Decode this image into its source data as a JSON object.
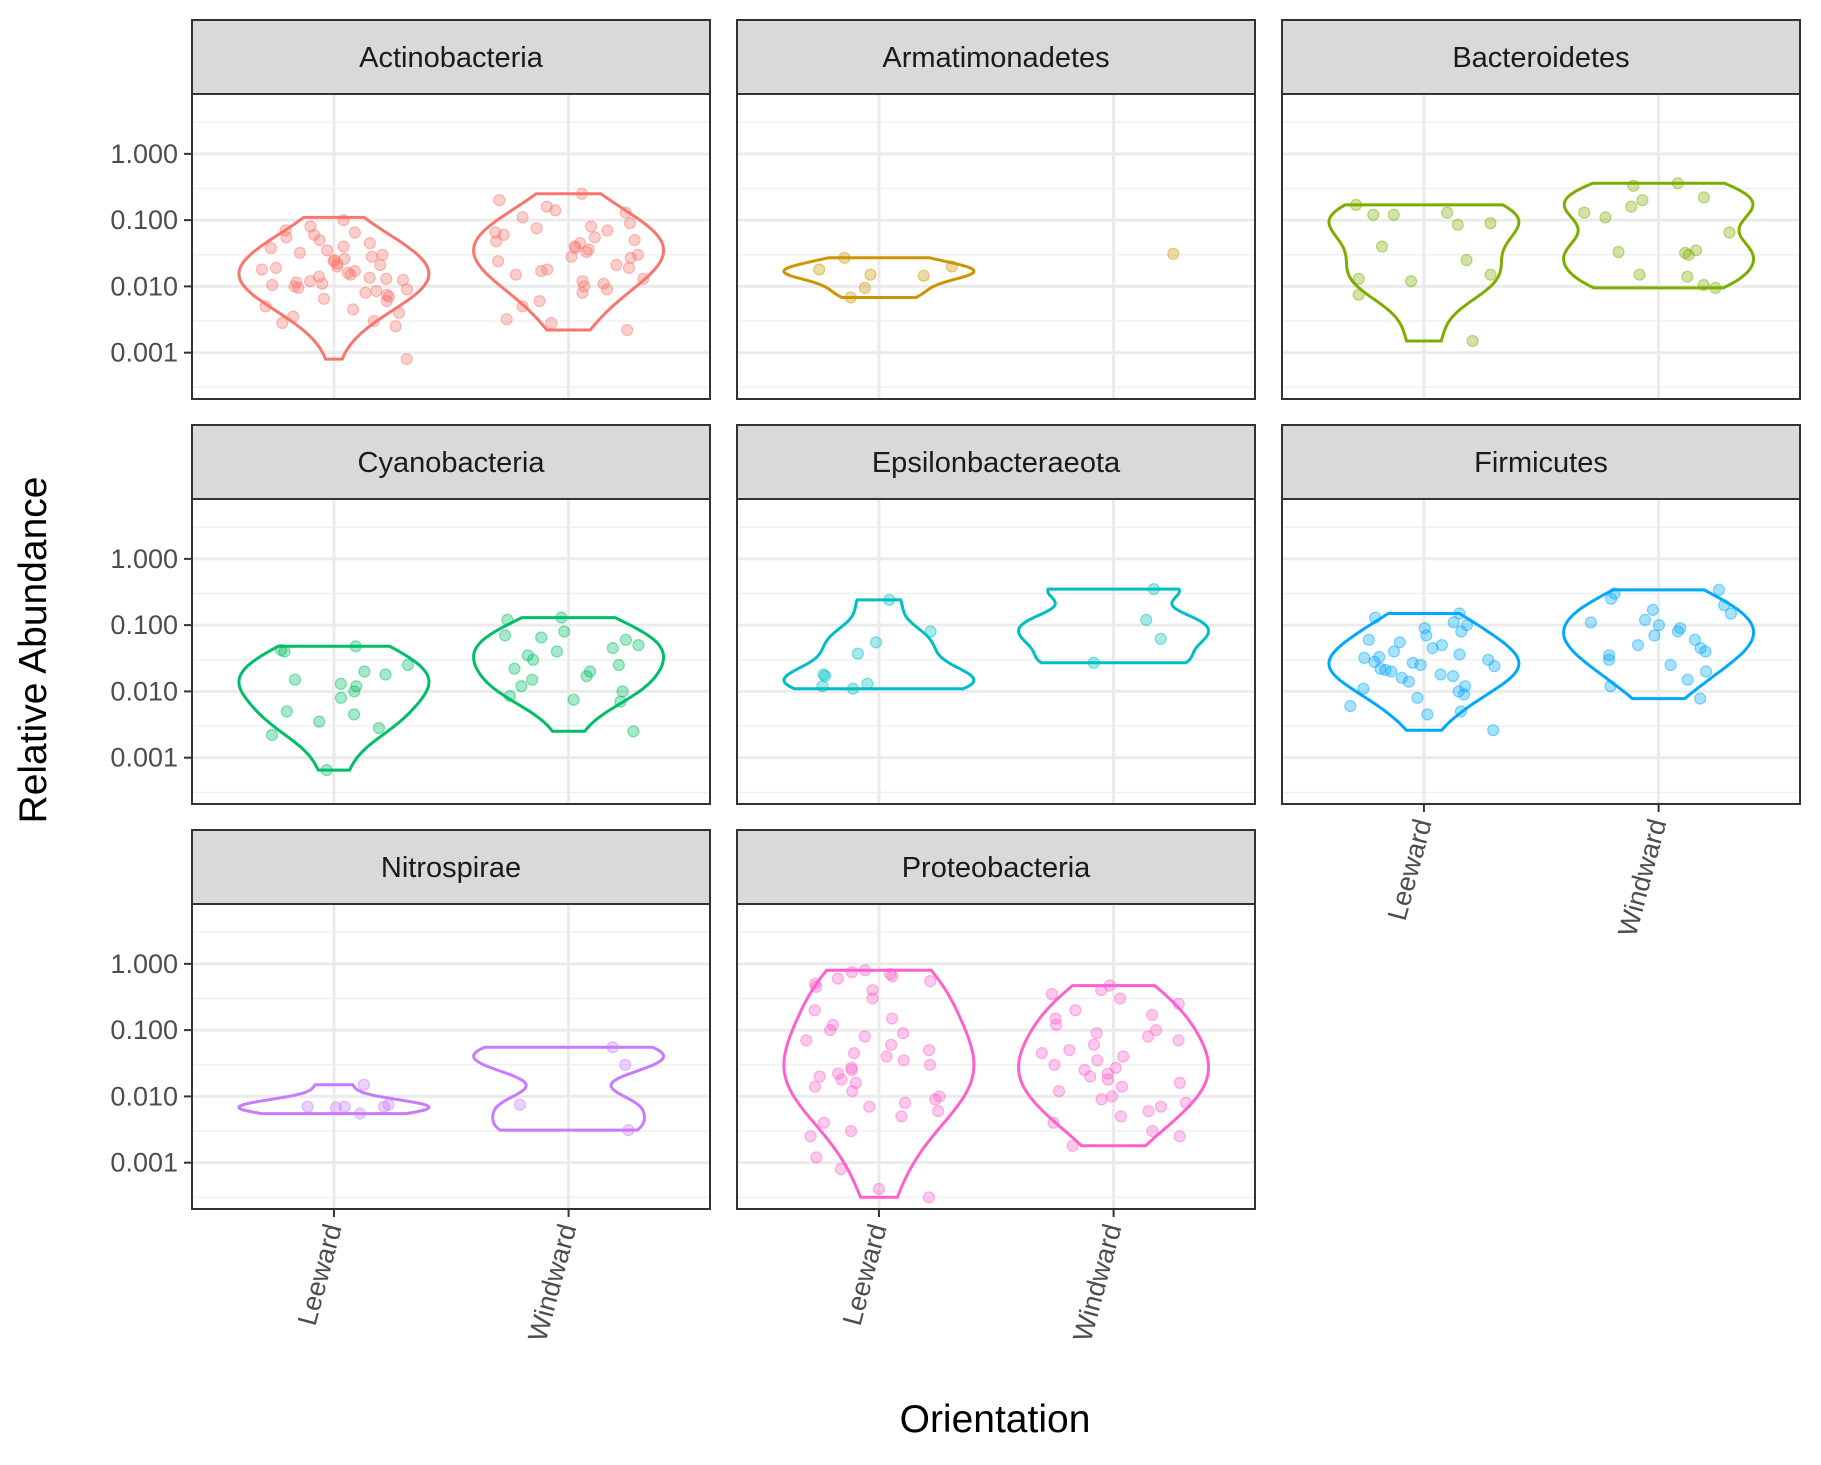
{
  "chart_data": {
    "type": "violin",
    "title": "",
    "xlabel": "Orientation",
    "ylabel": "Relative Abundance",
    "y_scale": "log10",
    "ylim": [
      0.0002,
      8
    ],
    "y_ticks": [
      "0.001",
      "0.010",
      "0.100",
      "1.000"
    ],
    "categories": [
      "Leeward",
      "Windward"
    ],
    "grid": true,
    "layout": "facet_wrap 3 columns",
    "panels": [
      {
        "name": "Actinobacteria",
        "color": "#F8766D",
        "groups": [
          {
            "category": "Leeward",
            "violin_range": [
              0.0008,
              0.11
            ],
            "points": [
              0.055,
              0.045,
              0.04,
              0.035,
              0.032,
              0.03,
              0.028,
              0.025,
              0.022,
              0.02,
              0.018,
              0.016,
              0.015,
              0.014,
              0.013,
              0.012,
              0.011,
              0.01,
              0.009,
              0.008,
              0.007,
              0.006,
              0.005,
              0.0045,
              0.004,
              0.0035,
              0.003,
              0.0028,
              0.0025,
              0.07,
              0.08,
              0.1,
              0.06,
              0.05,
              0.026,
              0.019,
              0.017,
              0.0125,
              0.0115,
              0.0095,
              0.0085,
              0.0075,
              0.065,
              0.038,
              0.024,
              0.021,
              0.0135,
              0.0105,
              0.0065,
              0.0008
            ]
          },
          {
            "category": "Windward",
            "violin_range": [
              0.0022,
              0.25
            ],
            "points": [
              0.25,
              0.2,
              0.16,
              0.13,
              0.11,
              0.09,
              0.08,
              0.07,
              0.06,
              0.055,
              0.05,
              0.045,
              0.04,
              0.036,
              0.033,
              0.03,
              0.027,
              0.024,
              0.021,
              0.019,
              0.017,
              0.015,
              0.013,
              0.012,
              0.011,
              0.01,
              0.009,
              0.008,
              0.006,
              0.005,
              0.0032,
              0.0028,
              0.0022,
              0.14,
              0.075,
              0.065,
              0.048,
              0.038,
              0.028,
              0.018
            ]
          }
        ]
      },
      {
        "name": "Armatimonadetes",
        "color": "#CD9600",
        "groups": [
          {
            "category": "Leeward",
            "violin_range": [
              0.0068,
              0.027
            ],
            "points": [
              0.027,
              0.02,
              0.018,
              0.015,
              0.0145,
              0.0095,
              0.0068
            ]
          },
          {
            "category": "Windward",
            "violin_range": null,
            "points": [
              0.031
            ]
          }
        ]
      },
      {
        "name": "Bacteroidetes",
        "color": "#7CAE00",
        "groups": [
          {
            "category": "Leeward",
            "violin_range": [
              0.0015,
              0.17
            ],
            "points": [
              0.17,
              0.13,
              0.12,
              0.12,
              0.09,
              0.085,
              0.04,
              0.025,
              0.015,
              0.013,
              0.012,
              0.0075,
              0.0015
            ]
          },
          {
            "category": "Windward",
            "violin_range": [
              0.0095,
              0.36
            ],
            "points": [
              0.36,
              0.33,
              0.22,
              0.2,
              0.16,
              0.13,
              0.11,
              0.065,
              0.035,
              0.033,
              0.032,
              0.03,
              0.015,
              0.014,
              0.0105,
              0.0095
            ]
          }
        ]
      },
      {
        "name": "Cyanobacteria",
        "color": "#00BE67",
        "groups": [
          {
            "category": "Leeward",
            "violin_range": [
              0.00065,
              0.048
            ],
            "points": [
              0.048,
              0.042,
              0.04,
              0.025,
              0.02,
              0.018,
              0.015,
              0.013,
              0.012,
              0.01,
              0.008,
              0.005,
              0.0045,
              0.0035,
              0.0028,
              0.0022,
              0.00065
            ]
          },
          {
            "category": "Windward",
            "violin_range": [
              0.0025,
              0.13
            ],
            "points": [
              0.13,
              0.12,
              0.08,
              0.07,
              0.065,
              0.06,
              0.05,
              0.045,
              0.04,
              0.035,
              0.03,
              0.025,
              0.022,
              0.02,
              0.017,
              0.015,
              0.012,
              0.01,
              0.0085,
              0.0075,
              0.007,
              0.0025
            ]
          }
        ]
      },
      {
        "name": "Epsilonbacteraeota",
        "color": "#00BFC4",
        "groups": [
          {
            "category": "Leeward",
            "violin_range": [
              0.011,
              0.24
            ],
            "points": [
              0.24,
              0.08,
              0.055,
              0.037,
              0.018,
              0.017,
              0.013,
              0.012,
              0.011
            ]
          },
          {
            "category": "Windward",
            "violin_range": [
              0.027,
              0.35
            ],
            "points": [
              0.35,
              0.12,
              0.062,
              0.027
            ]
          }
        ]
      },
      {
        "name": "Firmicutes",
        "color": "#00A9FF",
        "groups": [
          {
            "category": "Leeward",
            "violin_range": [
              0.0026,
              0.15
            ],
            "points": [
              0.15,
              0.13,
              0.11,
              0.1,
              0.09,
              0.08,
              0.07,
              0.06,
              0.055,
              0.05,
              0.045,
              0.04,
              0.036,
              0.033,
              0.03,
              0.027,
              0.025,
              0.022,
              0.02,
              0.018,
              0.016,
              0.014,
              0.012,
              0.011,
              0.01,
              0.009,
              0.008,
              0.006,
              0.005,
              0.0045,
              0.0026,
              0.032,
              0.028,
              0.024,
              0.021,
              0.017
            ]
          },
          {
            "category": "Windward",
            "violin_range": [
              0.0078,
              0.34
            ],
            "points": [
              0.34,
              0.3,
              0.25,
              0.2,
              0.17,
              0.15,
              0.12,
              0.11,
              0.1,
              0.09,
              0.08,
              0.07,
              0.06,
              0.05,
              0.045,
              0.04,
              0.035,
              0.03,
              0.025,
              0.02,
              0.015,
              0.012,
              0.0078
            ]
          }
        ]
      },
      {
        "name": "Nitrospirae",
        "color": "#C77CFF",
        "groups": [
          {
            "category": "Leeward",
            "violin_range": [
              0.0055,
              0.015
            ],
            "points": [
              0.015,
              0.0075,
              0.007,
              0.007,
              0.007,
              0.0068,
              0.0055
            ]
          },
          {
            "category": "Windward",
            "violin_range": [
              0.0031,
              0.055
            ],
            "points": [
              0.055,
              0.03,
              0.0075,
              0.0031
            ]
          }
        ]
      },
      {
        "name": "Proteobacteria",
        "color": "#FF61CC",
        "groups": [
          {
            "category": "Leeward",
            "violin_range": [
              0.0003,
              0.8
            ],
            "points": [
              0.8,
              0.75,
              0.7,
              0.65,
              0.6,
              0.55,
              0.5,
              0.45,
              0.4,
              0.3,
              0.2,
              0.15,
              0.12,
              0.1,
              0.09,
              0.08,
              0.07,
              0.06,
              0.05,
              0.045,
              0.04,
              0.035,
              0.03,
              0.027,
              0.025,
              0.022,
              0.02,
              0.018,
              0.016,
              0.014,
              0.012,
              0.01,
              0.009,
              0.008,
              0.007,
              0.006,
              0.005,
              0.004,
              0.003,
              0.0025,
              0.0012,
              0.0008,
              0.0004,
              0.0003
            ]
          },
          {
            "category": "Windward",
            "violin_range": [
              0.0018,
              0.47
            ],
            "points": [
              0.47,
              0.4,
              0.35,
              0.3,
              0.25,
              0.2,
              0.17,
              0.15,
              0.12,
              0.1,
              0.09,
              0.08,
              0.07,
              0.06,
              0.05,
              0.045,
              0.04,
              0.035,
              0.03,
              0.027,
              0.025,
              0.022,
              0.02,
              0.018,
              0.016,
              0.014,
              0.012,
              0.01,
              0.009,
              0.008,
              0.007,
              0.006,
              0.005,
              0.004,
              0.003,
              0.0025,
              0.0018
            ]
          }
        ]
      }
    ]
  }
}
